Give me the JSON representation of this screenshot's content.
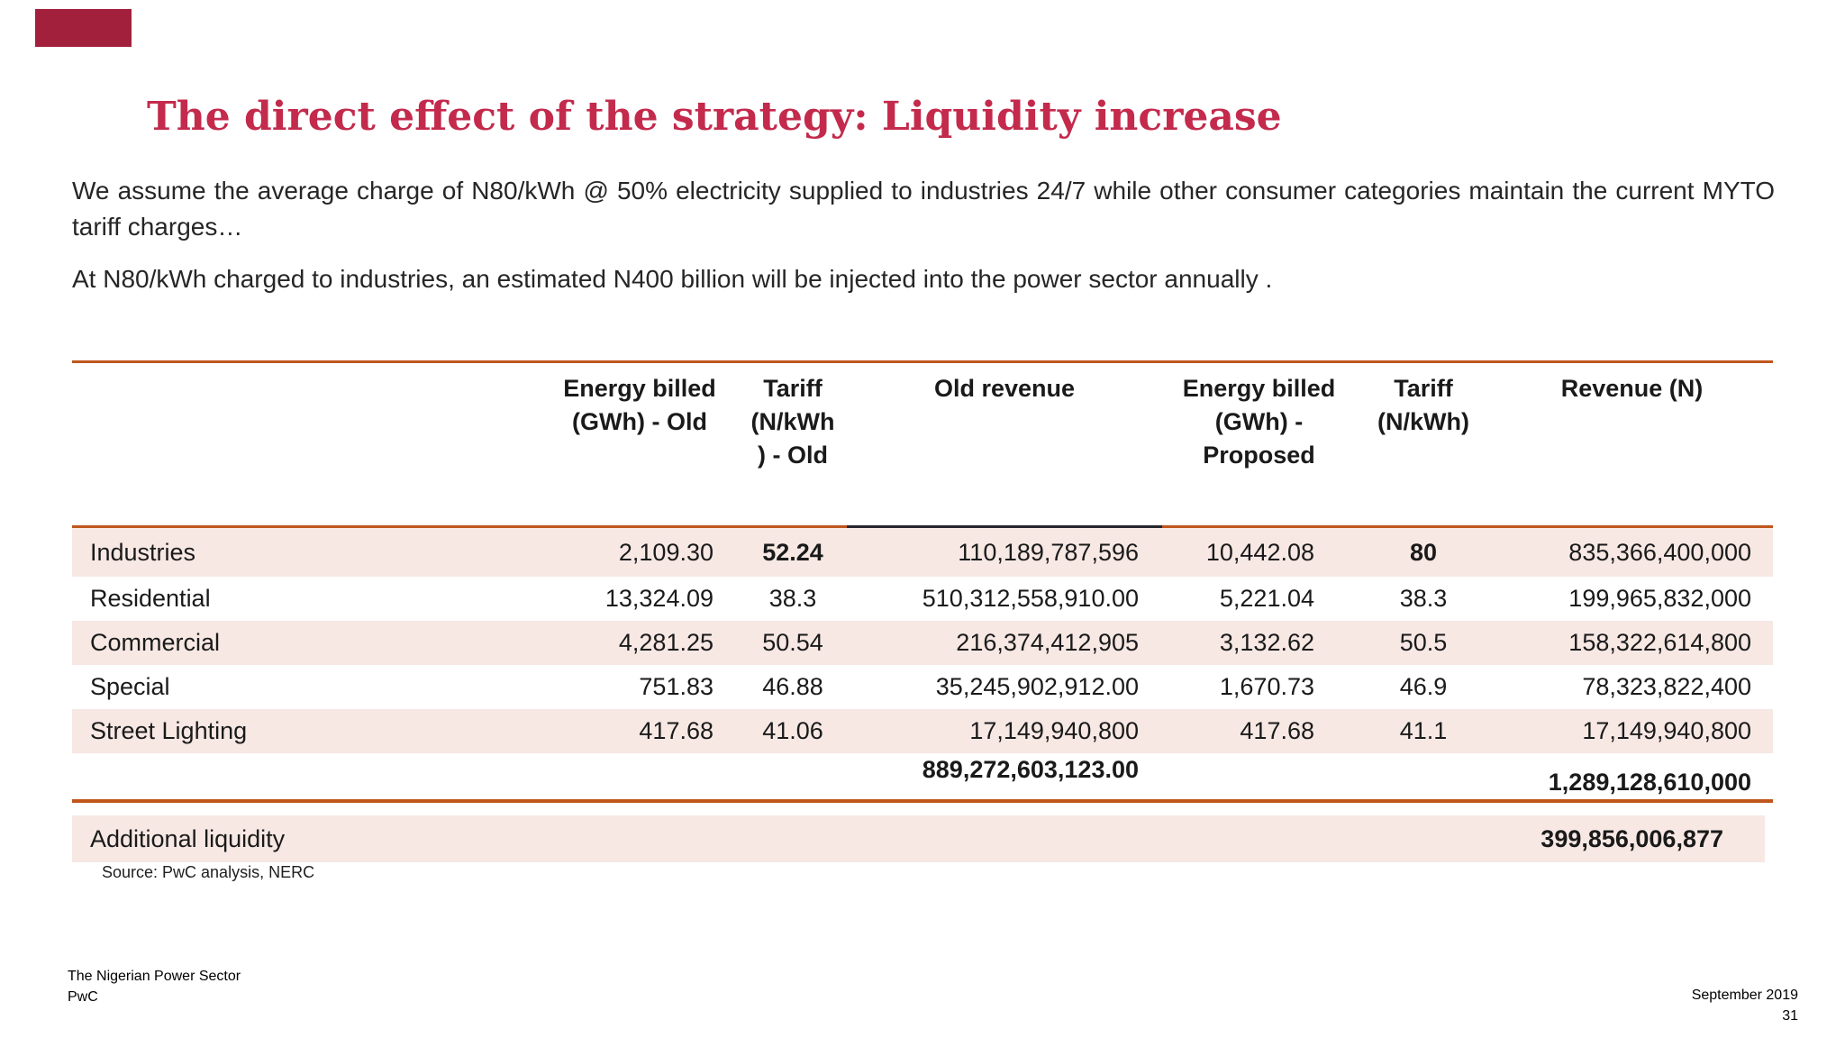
{
  "accent": {
    "title_color": "#C32A4C",
    "orange_line": "#C0561D",
    "dark_line_segment": "#26262E",
    "row_pink": "#F7E8E4",
    "red_bar": "#A2203C"
  },
  "header": {
    "title": "The direct effect of the strategy: Liquidity increase"
  },
  "intro": {
    "paragraph1": "We assume the average charge of N80/kWh @ 50% electricity supplied to industries 24/7 while other consumer categories maintain the current MYTO tariff charges…",
    "paragraph2": "At N80/kWh charged to industries, an estimated N400 billion will be injected into the power sector annually ."
  },
  "table": {
    "headers": {
      "row_label": "",
      "energy_old": "Energy billed\n(GWh) - Old",
      "tariff_old": "Tariff\n(N/kWh\n) - Old",
      "old_revenue": "Old revenue",
      "energy_proposed": "Energy billed\n(GWh) -\nProposed",
      "tariff_proposed": "Tariff\n(N/kWh)",
      "revenue": "Revenue (N)"
    },
    "rows": [
      {
        "label": "Industries",
        "energy_old": "2,109.30",
        "tariff_old": "52.24",
        "old_revenue": "110,189,787,596",
        "energy_proposed": "10,442.08",
        "tariff_proposed": "80",
        "revenue": "835,366,400,000"
      },
      {
        "label": "Residential",
        "energy_old": "13,324.09",
        "tariff_old": "38.3",
        "old_revenue": "510,312,558,910.00",
        "energy_proposed": "5,221.04",
        "tariff_proposed": "38.3",
        "revenue": "199,965,832,000"
      },
      {
        "label": "Commercial",
        "energy_old": "4,281.25",
        "tariff_old": "50.54",
        "old_revenue": "216,374,412,905",
        "energy_proposed": "3,132.62",
        "tariff_proposed": "50.5",
        "revenue": "158,322,614,800"
      },
      {
        "label": "Special",
        "energy_old": "751.83",
        "tariff_old": "46.88",
        "old_revenue": "35,245,902,912.00",
        "energy_proposed": "1,670.73",
        "tariff_proposed": "46.9",
        "revenue": "78,323,822,400"
      },
      {
        "label": "Street Lighting",
        "energy_old": "417.68",
        "tariff_old": "41.06",
        "old_revenue": "17,149,940,800",
        "energy_proposed": "417.68",
        "tariff_proposed": "41.1",
        "revenue": "17,149,940,800"
      }
    ],
    "totals": {
      "old_revenue_total": "889,272,603,123.00",
      "revenue_total": "1,289,128,610,000"
    }
  },
  "liquidity": {
    "label": "Additional liquidity",
    "value": "399,856,006,877"
  },
  "source": {
    "text": "Source: PwC analysis, NERC"
  },
  "footer": {
    "doc_title": "The Nigerian Power Sector",
    "brand": "PwC",
    "date": "September 2019",
    "page_number": "31"
  }
}
